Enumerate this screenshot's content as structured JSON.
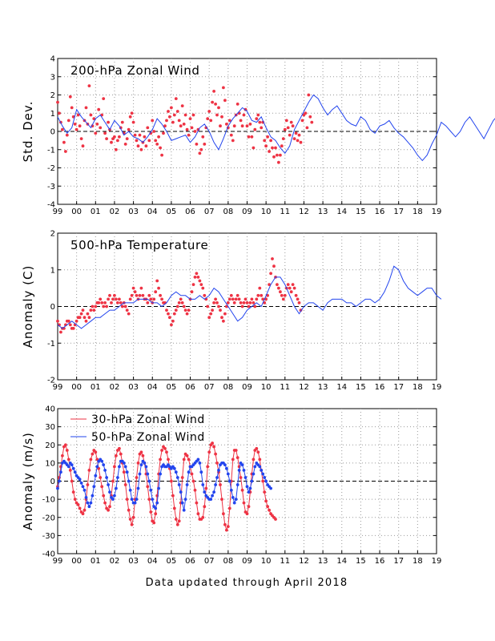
{
  "footer": "Data updated through April 2018",
  "colors": {
    "red": "#ee3344",
    "blue": "#2244ee",
    "axis": "#000000",
    "grid": "#9a9a9a"
  },
  "chart_data": [
    {
      "type": "line",
      "title": "200-hPa Zonal Wind",
      "ylabel": "Std. Dev.",
      "ylim": [
        -4,
        4
      ],
      "yticks": [
        "-4",
        "-3",
        "-2",
        "-1",
        "0",
        "1",
        "2",
        "3",
        "4"
      ],
      "xlim": [
        1999,
        2019
      ],
      "xticks": [
        "99",
        "00",
        "01",
        "02",
        "03",
        "04",
        "05",
        "06",
        "07",
        "08",
        "09",
        "10",
        "11",
        "12",
        "13",
        "14",
        "15",
        "16",
        "17",
        "18",
        "19"
      ],
      "grid": true,
      "zero_line": true,
      "series": [
        {
          "style": "points",
          "color": "red",
          "x_start": 1999.0,
          "x_step": 0.08333,
          "values": [
            1.6,
            1.0,
            0.5,
            0.1,
            -0.6,
            -1.1,
            -0.2,
            0.6,
            1.9,
            1.3,
            0.8,
            0.4,
            0.1,
            0.9,
            0.3,
            -0.4,
            -0.8,
            0.6,
            1.3,
            0.4,
            2.5,
            0.9,
            0.3,
            0.7,
            -0.1,
            0.4,
            1.2,
            0.2,
            0.9,
            1.8,
            -0.1,
            -0.4,
            0.5,
            0.1,
            -0.6,
            -0.4,
            -0.3,
            -1.0,
            -0.5,
            -0.3,
            0.2,
            0.5,
            -0.1,
            -0.7,
            -0.4,
            0.1,
            0.8,
            1.0,
            0.5,
            -0.2,
            -0.5,
            -0.8,
            -0.2,
            -1.0,
            -0.6,
            -0.3,
            -0.8,
            0.2,
            -0.5,
            -0.1,
            0.6,
            0.0,
            -0.5,
            -0.7,
            -0.3,
            -0.9,
            -1.3,
            -0.1,
            0.3,
            0.6,
            1.1,
            0.8,
            1.3,
            0.5,
            0.9,
            1.8,
            1.1,
            0.6,
            0.3,
            1.4,
            0.4,
            0.9,
            0.1,
            -0.2,
            0.7,
            0.2,
            0.9,
            0.0,
            -0.7,
            0.1,
            -1.2,
            -1.0,
            -0.3,
            -0.7,
            0.2,
            0.7,
            1.1,
            0.6,
            1.6,
            2.2,
            1.5,
            0.9,
            1.3,
            0.3,
            0.8,
            2.4,
            1.7,
            0.4,
            0.2,
            0.6,
            -0.2,
            -0.5,
            0.3,
            0.9,
            1.5,
            1.0,
            0.6,
            0.3,
            0.9,
            1.2,
            0.3,
            -0.3,
            0.4,
            -0.3,
            -0.9,
            0.1,
            0.7,
            0.9,
            0.5,
            0.2,
            0.5,
            -0.5,
            -0.8,
            -0.3,
            -1.1,
            -0.5,
            -0.9,
            -1.4,
            -0.9,
            -1.3,
            -1.7,
            -1.3,
            -0.8,
            -0.4,
            0.1,
            0.6,
            0.2,
            -0.2,
            0.5,
            0.3,
            -0.4,
            -0.1,
            -0.5,
            -0.2,
            -0.6,
            0.6,
            0.9,
            1.0,
            0.2,
            2.0,
            0.8,
            0.5
          ]
        },
        {
          "style": "line",
          "color": "blue",
          "x_start": 1999.0,
          "x_step": 0.25,
          "values": [
            0.8,
            0.3,
            -0.1,
            0.2,
            1.2,
            0.8,
            0.5,
            0.2,
            0.7,
            0.9,
            0.5,
            0.1,
            0.6,
            0.3,
            -0.2,
            0.0,
            -0.3,
            -0.4,
            -0.6,
            -0.3,
            0.1,
            0.7,
            0.4,
            0.0,
            -0.5,
            -0.4,
            -0.3,
            -0.2,
            -0.6,
            -0.3,
            0.2,
            0.4,
            0.0,
            -0.6,
            -1.0,
            -0.4,
            0.3,
            0.7,
            1.0,
            1.3,
            1.1,
            0.6,
            0.5,
            0.8,
            0.2,
            -0.3,
            -0.5,
            -0.9,
            -1.2,
            -0.8,
            0.1,
            0.6,
            1.1,
            1.6,
            2.0,
            1.8,
            1.3,
            0.9,
            1.2,
            1.4,
            1.0,
            0.6,
            0.4,
            0.3,
            0.8,
            0.6,
            0.1,
            -0.1,
            0.3,
            0.4,
            0.6,
            0.2,
            -0.1,
            -0.3,
            -0.6,
            -0.9,
            -1.3,
            -1.6,
            -1.3,
            -0.7,
            -0.2,
            0.5,
            0.3,
            0.0,
            -0.3,
            0.0,
            0.5,
            0.8,
            0.4,
            0.0,
            -0.4,
            0.1,
            0.6,
            0.9
          ]
        }
      ]
    },
    {
      "type": "line",
      "title": "500-hPa Temperature",
      "ylabel": "Anomaly (C)",
      "ylim": [
        -2,
        2
      ],
      "yticks": [
        "-2",
        "-1",
        "0",
        "1",
        "2"
      ],
      "xlim": [
        1999,
        2019
      ],
      "xticks": [
        "99",
        "00",
        "01",
        "02",
        "03",
        "04",
        "05",
        "06",
        "07",
        "08",
        "09",
        "10",
        "11",
        "12",
        "13",
        "14",
        "15",
        "16",
        "17",
        "18",
        "19"
      ],
      "grid": true,
      "zero_line": true,
      "series": [
        {
          "style": "points",
          "color": "red",
          "x_start": 1999.0,
          "x_step": 0.08333,
          "values": [
            -0.4,
            -0.5,
            -0.7,
            -0.6,
            -0.6,
            -0.5,
            -0.4,
            -0.4,
            -0.5,
            -0.6,
            -0.6,
            -0.5,
            -0.4,
            -0.3,
            -0.3,
            -0.2,
            -0.1,
            -0.3,
            -0.4,
            -0.2,
            -0.3,
            -0.1,
            0.0,
            -0.1,
            0.0,
            0.1,
            0.1,
            0.2,
            0.1,
            0.0,
            0.1,
            0.0,
            0.2,
            0.3,
            0.1,
            0.2,
            0.3,
            0.2,
            0.1,
            0.2,
            0.1,
            0.0,
            0.1,
            0.0,
            -0.1,
            -0.2,
            0.2,
            0.3,
            0.5,
            0.4,
            0.3,
            0.2,
            0.3,
            0.5,
            0.3,
            0.2,
            0.2,
            0.1,
            0.3,
            0.2,
            0.1,
            0.2,
            0.4,
            0.7,
            0.5,
            0.3,
            0.2,
            0.1,
            0.1,
            -0.1,
            -0.2,
            -0.3,
            -0.5,
            -0.4,
            -0.2,
            -0.1,
            0.0,
            0.1,
            0.2,
            0.1,
            0.0,
            -0.1,
            -0.2,
            -0.1,
            0.2,
            0.4,
            0.6,
            0.8,
            0.9,
            0.8,
            0.7,
            0.6,
            0.5,
            0.3,
            0.2,
            0.0,
            -0.3,
            -0.2,
            -0.1,
            0.1,
            0.2,
            0.1,
            0.0,
            -0.1,
            -0.3,
            -0.4,
            -0.2,
            0.0,
            0.1,
            0.2,
            0.3,
            0.2,
            0.1,
            0.2,
            0.3,
            0.2,
            0.1,
            0.0,
            0.1,
            0.2,
            0.1,
            0.0,
            0.1,
            0.2,
            0.1,
            0.0,
            0.2,
            0.3,
            0.5,
            0.3,
            0.2,
            0.1,
            0.2,
            0.3,
            0.6,
            0.9,
            1.3,
            1.1,
            0.8,
            0.6,
            0.5,
            0.4,
            0.3,
            0.2,
            0.3,
            0.5,
            0.6,
            0.5,
            0.4,
            0.6,
            0.5,
            0.3,
            0.2,
            0.1,
            -0.1
          ]
        },
        {
          "style": "line",
          "color": "blue",
          "x_start": 1999.0,
          "x_step": 0.25,
          "values": [
            -0.5,
            -0.6,
            -0.5,
            -0.4,
            -0.5,
            -0.6,
            -0.5,
            -0.4,
            -0.3,
            -0.3,
            -0.2,
            -0.1,
            -0.1,
            0.0,
            0.1,
            0.1,
            0.1,
            0.2,
            0.2,
            0.2,
            0.1,
            0.1,
            0.0,
            0.1,
            0.3,
            0.4,
            0.3,
            0.3,
            0.2,
            0.2,
            0.3,
            0.2,
            0.3,
            0.5,
            0.4,
            0.2,
            0.0,
            -0.2,
            -0.4,
            -0.3,
            -0.1,
            0.0,
            0.1,
            0.0,
            0.3,
            0.6,
            0.8,
            0.8,
            0.6,
            0.3,
            0.0,
            -0.2,
            0.0,
            0.1,
            0.1,
            0.0,
            -0.1,
            0.1,
            0.2,
            0.2,
            0.2,
            0.1,
            0.1,
            0.0,
            0.1,
            0.2,
            0.2,
            0.1,
            0.2,
            0.4,
            0.7,
            1.1,
            1.0,
            0.7,
            0.5,
            0.4,
            0.3,
            0.4,
            0.5,
            0.5,
            0.3,
            0.2
          ]
        }
      ]
    },
    {
      "type": "line",
      "title": "",
      "ylabel": "Anomaly (m/s)",
      "ylim": [
        -40,
        40
      ],
      "yticks": [
        "-40",
        "-30",
        "-20",
        "-10",
        "0",
        "10",
        "20",
        "30",
        "40"
      ],
      "xlim": [
        1999,
        2019
      ],
      "xticks": [
        "99",
        "00",
        "01",
        "02",
        "03",
        "04",
        "05",
        "06",
        "07",
        "08",
        "09",
        "10",
        "11",
        "12",
        "13",
        "14",
        "15",
        "16",
        "17",
        "18",
        "19"
      ],
      "grid": true,
      "zero_line": true,
      "legend": [
        {
          "name": "30-hPa Zonal Wind",
          "color": "red"
        },
        {
          "name": "50-hPa Zonal Wind",
          "color": "blue"
        }
      ],
      "series": [
        {
          "style": "line+points",
          "color": "red",
          "x_start": 1999.0,
          "x_step": 0.08333,
          "values": [
            -3,
            2,
            8,
            14,
            19,
            20,
            17,
            12,
            6,
            0,
            -6,
            -10,
            -12,
            -13,
            -15,
            -17,
            -18,
            -16,
            -10,
            -2,
            6,
            12,
            15,
            17,
            16,
            12,
            7,
            2,
            -3,
            -8,
            -12,
            -15,
            -16,
            -14,
            -8,
            0,
            8,
            14,
            17,
            18,
            15,
            10,
            5,
            -2,
            -10,
            -16,
            -21,
            -24,
            -20,
            -10,
            2,
            10,
            15,
            16,
            14,
            10,
            4,
            -3,
            -10,
            -17,
            -22,
            -23,
            -18,
            -8,
            4,
            12,
            17,
            19,
            18,
            16,
            12,
            7,
            0,
            -8,
            -15,
            -21,
            -24,
            -22,
            -12,
            2,
            12,
            15,
            14,
            12,
            8,
            4,
            0,
            -5,
            -12,
            -18,
            -21,
            -21,
            -20,
            -14,
            -4,
            8,
            16,
            20,
            21,
            19,
            15,
            10,
            5,
            -2,
            -10,
            -18,
            -24,
            -27,
            -25,
            -15,
            0,
            12,
            17,
            17,
            13,
            8,
            2,
            -5,
            -12,
            -17,
            -18,
            -14,
            -6,
            4,
            12,
            17,
            18,
            16,
            12,
            6,
            0,
            -6,
            -11,
            -14,
            -16,
            -18,
            -19,
            -20,
            -21
          ]
        },
        {
          "style": "line+points",
          "color": "blue",
          "x_start": 1999.0,
          "x_step": 0.08333,
          "values": [
            -4,
            0,
            5,
            10,
            11,
            10,
            9,
            8,
            10,
            9,
            7,
            5,
            3,
            2,
            1,
            -1,
            -3,
            -5,
            -9,
            -12,
            -14,
            -12,
            -8,
            -3,
            3,
            8,
            11,
            12,
            11,
            9,
            6,
            2,
            -2,
            -6,
            -9,
            -10,
            -8,
            -4,
            2,
            8,
            11,
            11,
            10,
            8,
            5,
            0,
            -5,
            -10,
            -12,
            -12,
            -10,
            -4,
            4,
            9,
            11,
            10,
            8,
            4,
            0,
            -5,
            -10,
            -14,
            -15,
            -12,
            -4,
            4,
            8,
            9,
            8,
            8,
            9,
            8,
            7,
            8,
            7,
            5,
            2,
            -2,
            -6,
            -12,
            -16,
            -10,
            -2,
            5,
            8,
            8,
            9,
            10,
            11,
            12,
            10,
            5,
            -2,
            -6,
            -8,
            -9,
            -10,
            -10,
            -8,
            -6,
            -2,
            2,
            6,
            9,
            10,
            10,
            9,
            7,
            4,
            0,
            -5,
            -9,
            -12,
            -10,
            -2,
            6,
            10,
            9,
            6,
            2,
            -3,
            -6,
            -4,
            0,
            4,
            8,
            10,
            9,
            8,
            6,
            4,
            2,
            0,
            -2,
            -3,
            -4
          ]
        }
      ]
    }
  ]
}
